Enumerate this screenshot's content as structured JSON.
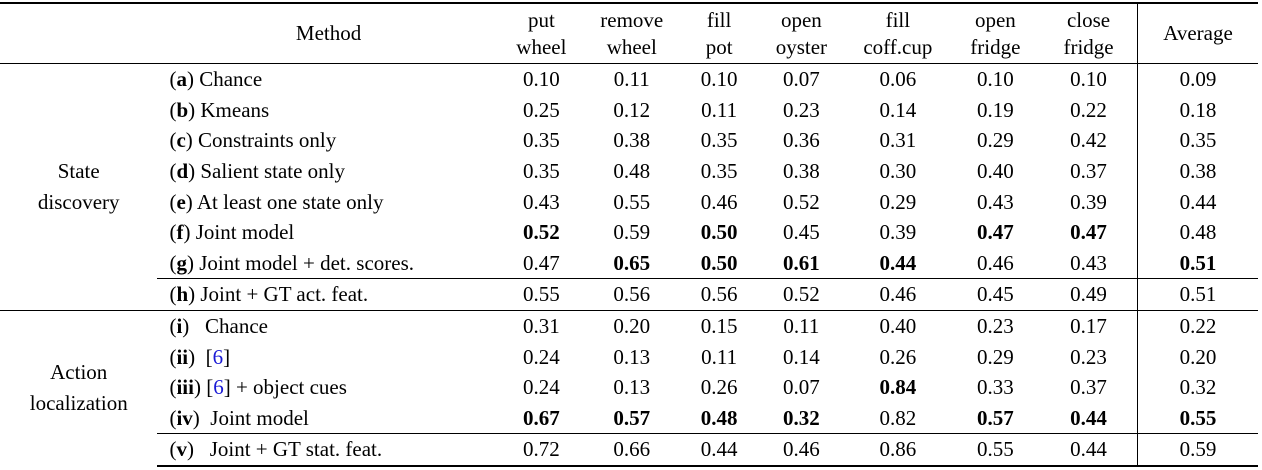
{
  "table": {
    "method_header": "Method",
    "columns": [
      {
        "line1": "put",
        "line2": "wheel"
      },
      {
        "line1": "remove",
        "line2": "wheel"
      },
      {
        "line1": "fill",
        "line2": "pot"
      },
      {
        "line1": "open",
        "line2": "oyster"
      },
      {
        "line1": "fill",
        "line2": "coff.cup"
      },
      {
        "line1": "open",
        "line2": "fridge"
      },
      {
        "line1": "close",
        "line2": "fridge"
      }
    ],
    "average_header": "Average",
    "groups": [
      {
        "name_line1": "State",
        "name_line2": "discovery",
        "rows": [
          {
            "label": "a",
            "text": " Chance",
            "values": [
              "0.10",
              "0.11",
              "0.10",
              "0.07",
              "0.06",
              "0.10",
              "0.10"
            ],
            "bold": [
              false,
              false,
              false,
              false,
              false,
              false,
              false
            ],
            "average": "0.09",
            "average_bold": false
          },
          {
            "label": "b",
            "text": " Kmeans",
            "values": [
              "0.25",
              "0.12",
              "0.11",
              "0.23",
              "0.14",
              "0.19",
              "0.22"
            ],
            "bold": [
              false,
              false,
              false,
              false,
              false,
              false,
              false
            ],
            "average": "0.18",
            "average_bold": false
          },
          {
            "label": "c",
            "text": " Constraints only",
            "values": [
              "0.35",
              "0.38",
              "0.35",
              "0.36",
              "0.31",
              "0.29",
              "0.42"
            ],
            "bold": [
              false,
              false,
              false,
              false,
              false,
              false,
              false
            ],
            "average": "0.35",
            "average_bold": false
          },
          {
            "label": "d",
            "text": " Salient state only",
            "values": [
              "0.35",
              "0.48",
              "0.35",
              "0.38",
              "0.30",
              "0.40",
              "0.37"
            ],
            "bold": [
              false,
              false,
              false,
              false,
              false,
              false,
              false
            ],
            "average": "0.38",
            "average_bold": false
          },
          {
            "label": "e",
            "text": " At least one state only",
            "values": [
              "0.43",
              "0.55",
              "0.46",
              "0.52",
              "0.29",
              "0.43",
              "0.39"
            ],
            "bold": [
              false,
              false,
              false,
              false,
              false,
              false,
              false
            ],
            "average": "0.44",
            "average_bold": false
          },
          {
            "label": "f",
            "text": " Joint model",
            "values": [
              "0.52",
              "0.59",
              "0.50",
              "0.45",
              "0.39",
              "0.47",
              "0.47"
            ],
            "bold": [
              true,
              false,
              true,
              false,
              false,
              true,
              true
            ],
            "average": "0.48",
            "average_bold": false
          },
          {
            "label": "g",
            "text": " Joint model + det. scores.",
            "values": [
              "0.47",
              "0.65",
              "0.50",
              "0.61",
              "0.44",
              "0.46",
              "0.43"
            ],
            "bold": [
              false,
              true,
              true,
              true,
              true,
              false,
              false
            ],
            "average": "0.51",
            "average_bold": true
          },
          {
            "label": "h",
            "text": " Joint + GT act. feat.",
            "values": [
              "0.55",
              "0.56",
              "0.56",
              "0.52",
              "0.46",
              "0.45",
              "0.49"
            ],
            "bold": [
              false,
              false,
              false,
              false,
              false,
              false,
              false
            ],
            "average": "0.51",
            "average_bold": false,
            "separated": true
          }
        ]
      },
      {
        "name_line1": "Action",
        "name_line2": "localization",
        "rows": [
          {
            "label": "i",
            "text": "   Chance",
            "values": [
              "0.31",
              "0.20",
              "0.15",
              "0.11",
              "0.40",
              "0.23",
              "0.17"
            ],
            "bold": [
              false,
              false,
              false,
              false,
              false,
              false,
              false
            ],
            "average": "0.22",
            "average_bold": false
          },
          {
            "label": "ii",
            "text_pre": "  [",
            "ref": "6",
            "text": "]",
            "values": [
              "0.24",
              "0.13",
              "0.11",
              "0.14",
              "0.26",
              "0.29",
              "0.23"
            ],
            "bold": [
              false,
              false,
              false,
              false,
              false,
              false,
              false
            ],
            "average": "0.20",
            "average_bold": false
          },
          {
            "label": "iii",
            "text_pre": " [",
            "ref": "6",
            "text": "] + object cues",
            "values": [
              "0.24",
              "0.13",
              "0.26",
              "0.07",
              "0.84",
              "0.33",
              "0.37"
            ],
            "bold": [
              false,
              false,
              false,
              false,
              true,
              false,
              false
            ],
            "average": "0.32",
            "average_bold": false
          },
          {
            "label": "iv",
            "text": "  Joint model",
            "values": [
              "0.67",
              "0.57",
              "0.48",
              "0.32",
              "0.82",
              "0.57",
              "0.44"
            ],
            "bold": [
              true,
              true,
              true,
              true,
              false,
              true,
              true
            ],
            "average": "0.55",
            "average_bold": true
          },
          {
            "label": "v",
            "text": "   Joint + GT stat. feat.",
            "values": [
              "0.72",
              "0.66",
              "0.44",
              "0.46",
              "0.86",
              "0.55",
              "0.44"
            ],
            "bold": [
              false,
              false,
              false,
              false,
              false,
              false,
              false
            ],
            "average": "0.59",
            "average_bold": false,
            "separated": true
          }
        ]
      }
    ]
  }
}
